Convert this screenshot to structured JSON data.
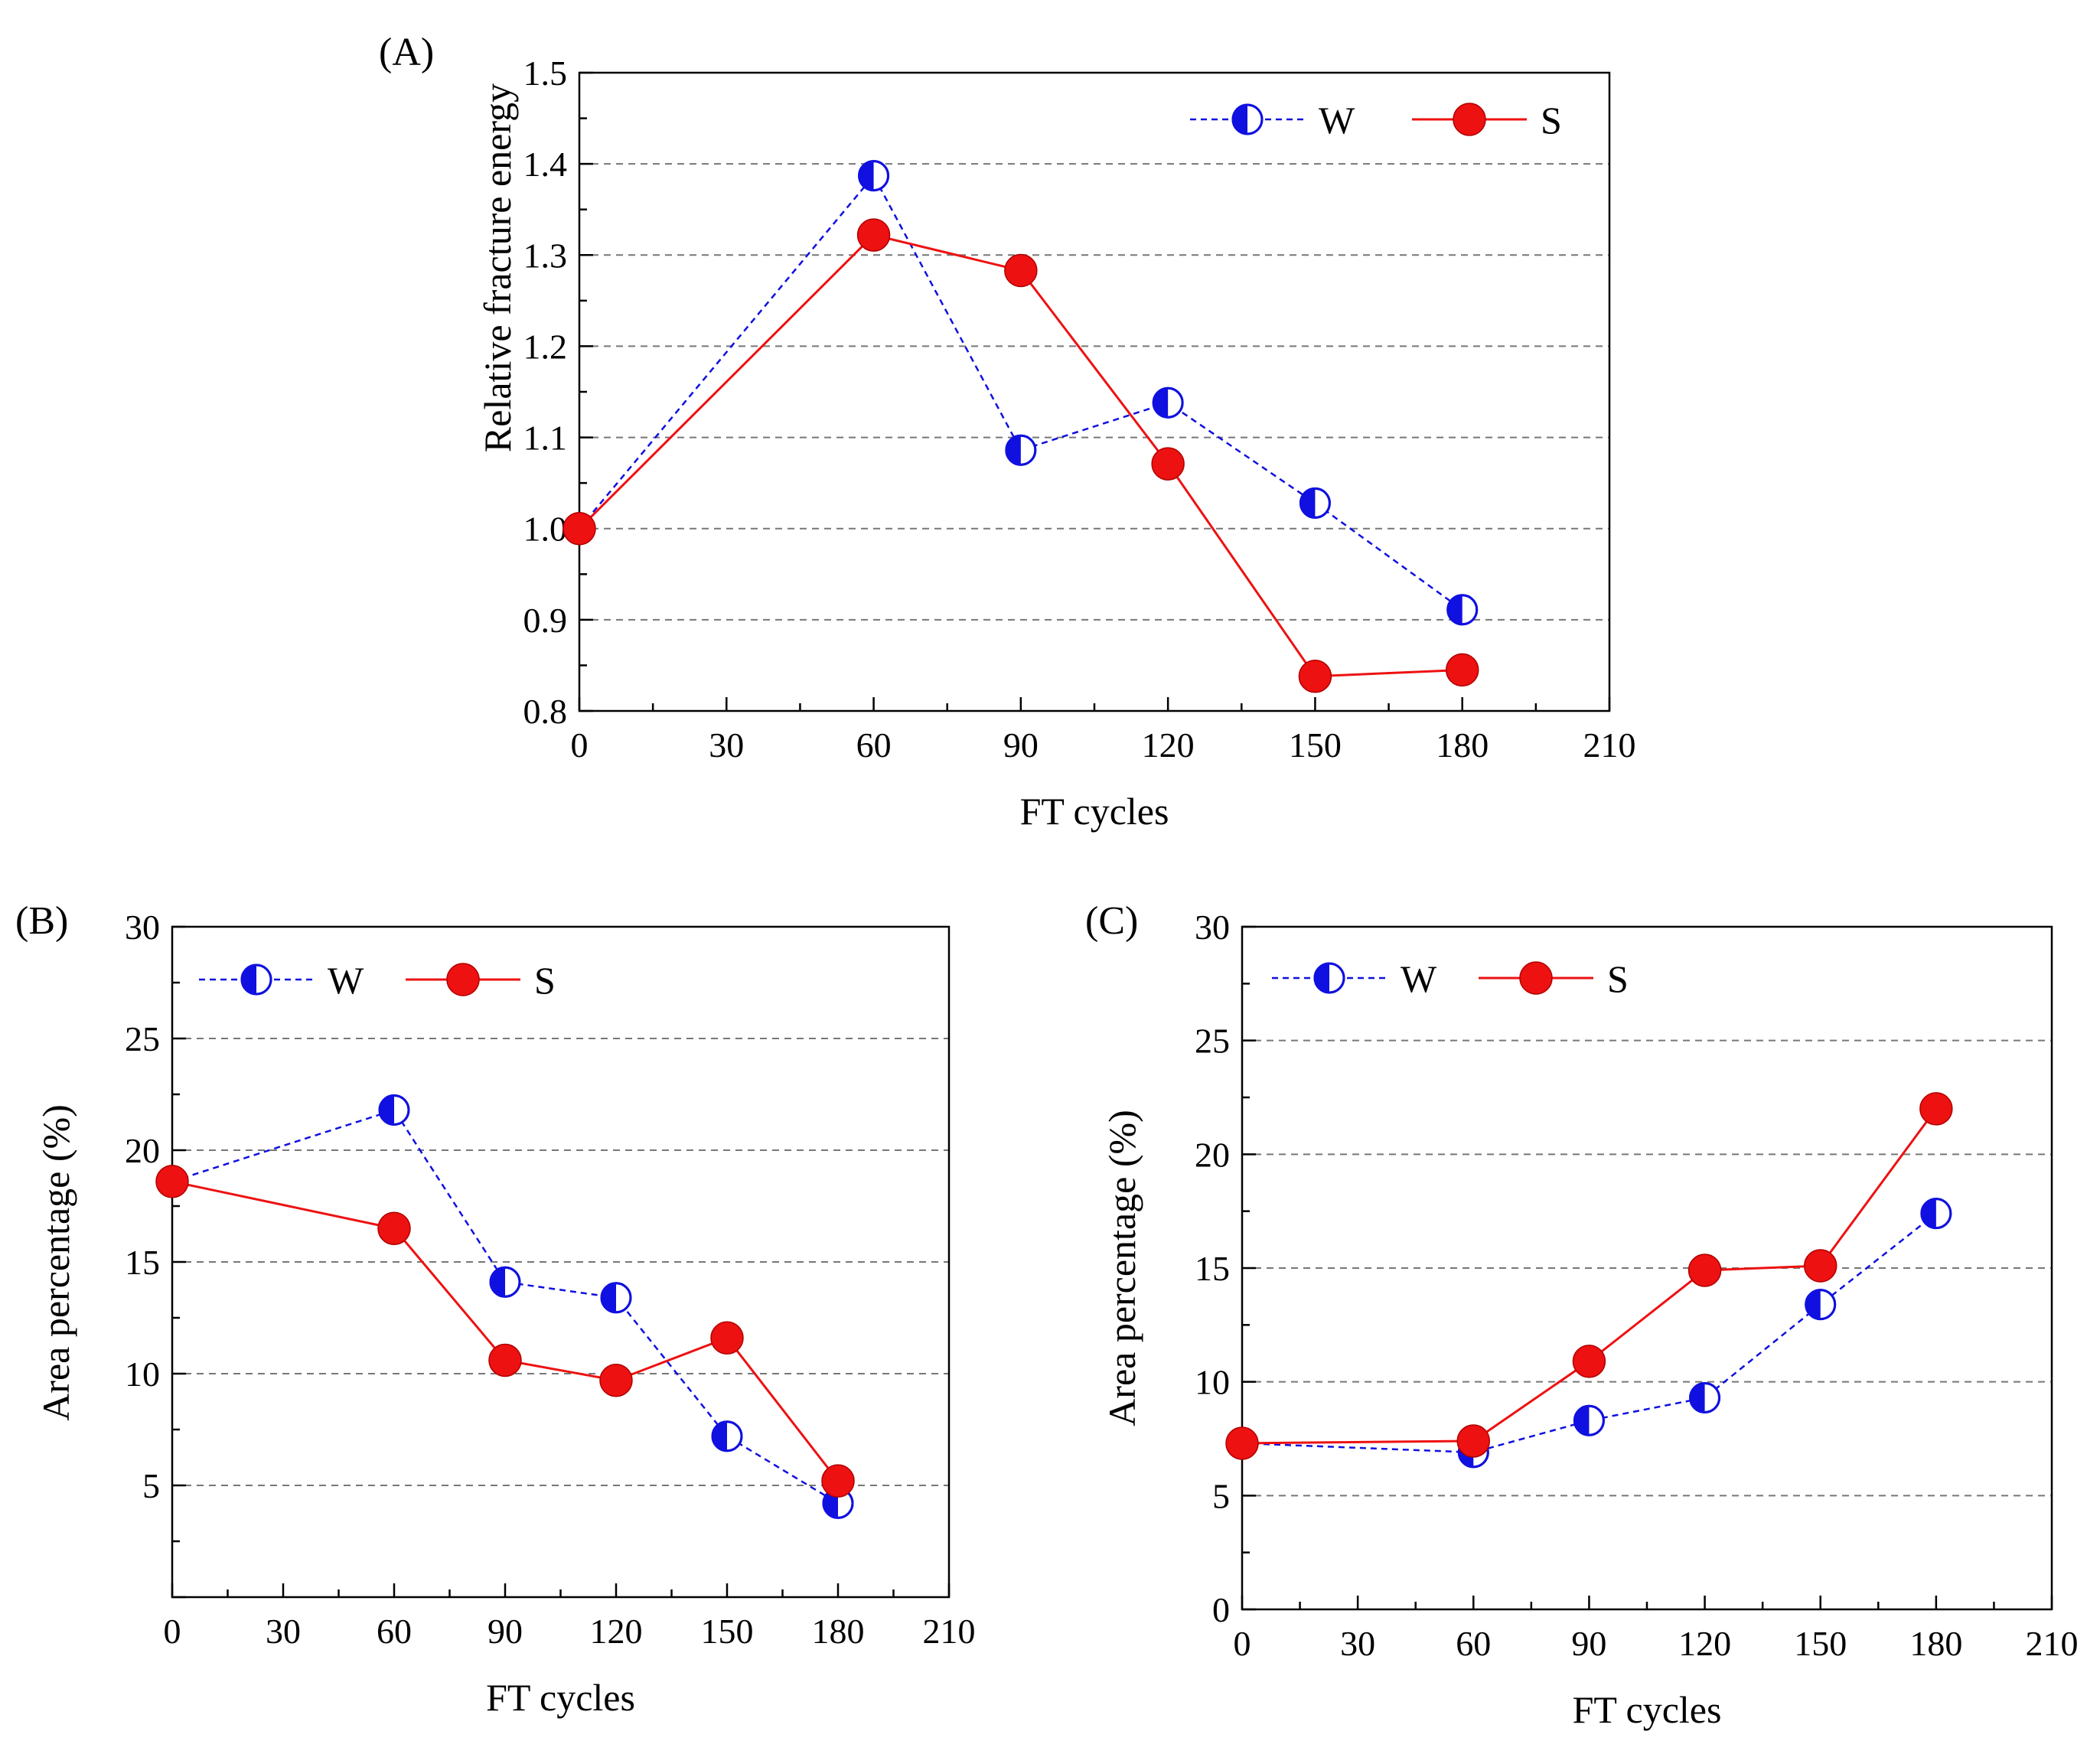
{
  "colors": {
    "W": "#1010e0",
    "S": "#ee1111",
    "grid": "#777777",
    "axis": "#000000"
  },
  "chart_data": [
    {
      "panel": "(A)",
      "type": "line",
      "xlabel": "FT cycles",
      "ylabel": "Relative fracture energy",
      "xlim": [
        0,
        210
      ],
      "ylim": [
        0.8,
        1.5
      ],
      "xticks": [
        "0",
        "30",
        "60",
        "90",
        "120",
        "150",
        "180",
        "210"
      ],
      "yticks": [
        "0.8",
        "0.9",
        "1.0",
        "1.1",
        "1.2",
        "1.3",
        "1.4",
        "1.5"
      ],
      "gridlines": [
        0.9,
        1.0,
        1.1,
        1.2,
        1.3,
        1.4
      ],
      "legend_position": "top-right",
      "series": [
        {
          "name": "W",
          "x": [
            0,
            60,
            90,
            120,
            150,
            180
          ],
          "y": [
            1.0,
            1.387,
            1.086,
            1.138,
            1.028,
            0.911
          ]
        },
        {
          "name": "S",
          "x": [
            0,
            60,
            90,
            120,
            150,
            180
          ],
          "y": [
            1.0,
            1.322,
            1.283,
            1.071,
            0.838,
            0.845
          ]
        }
      ]
    },
    {
      "panel": "(B)",
      "type": "line",
      "xlabel": "FT cycles",
      "ylabel": "Area percentage (%)",
      "xlim": [
        0,
        210
      ],
      "ylim": [
        0,
        30
      ],
      "xticks": [
        "0",
        "30",
        "60",
        "90",
        "120",
        "150",
        "180",
        "210"
      ],
      "yticks": [
        "5",
        "10",
        "15",
        "20",
        "25",
        "30"
      ],
      "gridlines": [
        5,
        10,
        15,
        20,
        25
      ],
      "legend_position": "top-left",
      "series": [
        {
          "name": "W",
          "x": [
            0,
            60,
            90,
            120,
            150,
            180
          ],
          "y": [
            18.6,
            21.8,
            14.1,
            13.4,
            7.2,
            4.2
          ]
        },
        {
          "name": "S",
          "x": [
            0,
            60,
            90,
            120,
            150,
            180
          ],
          "y": [
            18.6,
            16.5,
            10.6,
            9.7,
            11.6,
            5.2
          ]
        }
      ]
    },
    {
      "panel": "(C)",
      "type": "line",
      "xlabel": "FT cycles",
      "ylabel": "Area percentage (%)",
      "xlim": [
        0,
        210
      ],
      "ylim": [
        0,
        30
      ],
      "xticks": [
        "0",
        "30",
        "60",
        "90",
        "120",
        "150",
        "180",
        "210"
      ],
      "yticks": [
        "0",
        "5",
        "10",
        "15",
        "20",
        "25",
        "30"
      ],
      "gridlines": [
        5,
        10,
        15,
        20,
        25
      ],
      "legend_position": "top-left",
      "series": [
        {
          "name": "W",
          "x": [
            0,
            60,
            90,
            120,
            150,
            180
          ],
          "y": [
            7.3,
            6.9,
            8.3,
            9.3,
            13.4,
            17.4
          ]
        },
        {
          "name": "S",
          "x": [
            0,
            60,
            90,
            120,
            150,
            180
          ],
          "y": [
            7.3,
            7.4,
            10.9,
            14.9,
            15.1,
            22.0
          ]
        }
      ]
    }
  ]
}
